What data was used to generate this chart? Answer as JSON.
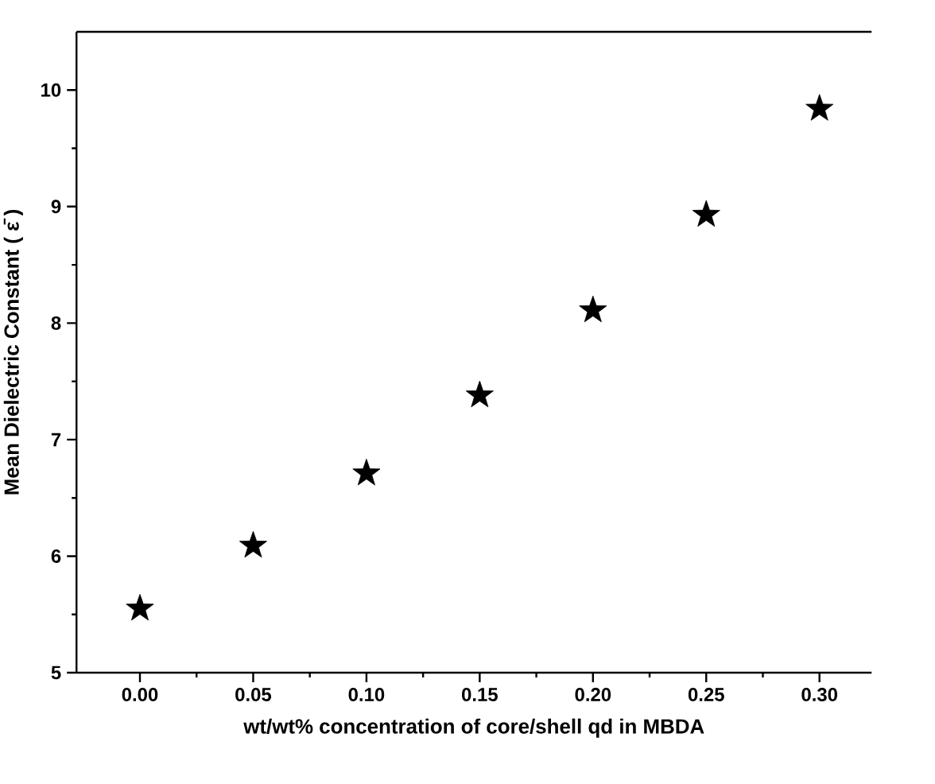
{
  "chart_data": {
    "type": "scatter",
    "xlabel": "wt/wt% concentration of core/shell qd in MBDA",
    "ylabel": "Mean Dielectric Constant ( ε̄ )",
    "x": [
      0.0,
      0.05,
      0.1,
      0.15,
      0.2,
      0.25,
      0.3
    ],
    "series": [
      {
        "color": "#000000",
        "values": [
          5.55,
          6.09,
          6.71,
          7.38,
          8.11,
          8.93,
          9.84
        ]
      }
    ],
    "xlim": [
      -0.028,
      0.323
    ],
    "ylim": [
      5,
      10.5
    ],
    "xticks": [
      {
        "value": 0.0,
        "label": "0.00"
      },
      {
        "value": 0.05,
        "label": "0.05"
      },
      {
        "value": 0.1,
        "label": "0.10"
      },
      {
        "value": 0.15,
        "label": "0.15"
      },
      {
        "value": 0.2,
        "label": "0.20"
      },
      {
        "value": 0.25,
        "label": "0.25"
      },
      {
        "value": 0.3,
        "label": "0.30"
      }
    ],
    "yticks": [
      5,
      6,
      7,
      8,
      9,
      10
    ],
    "marker": "star",
    "grid": false
  }
}
